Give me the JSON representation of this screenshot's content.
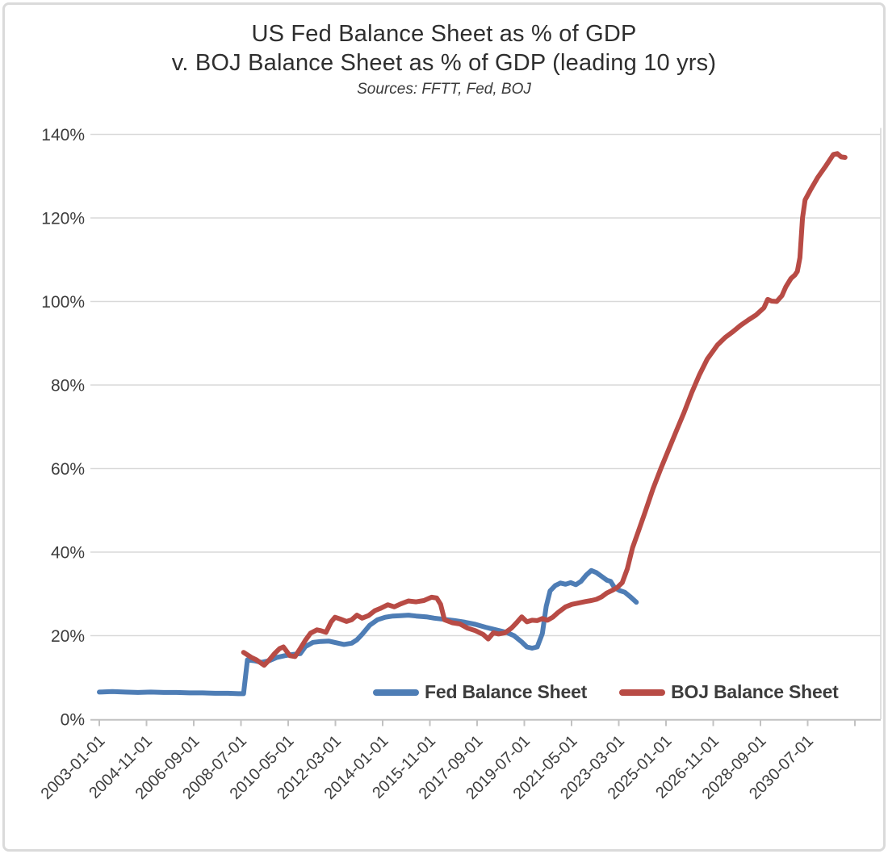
{
  "chart_data": {
    "type": "line",
    "title": "US Fed Balance Sheet as % of GDP",
    "subtitle": "v. BOJ Balance Sheet as % of GDP (leading 10 yrs)",
    "sources_note": "Sources: FFTT, Fed, BOJ",
    "x_axis": {
      "tick_labels": [
        "2003-01-01",
        "2004-11-01",
        "2006-09-01",
        "2008-07-01",
        "2010-05-01",
        "2012-03-01",
        "2014-01-01",
        "2015-11-01",
        "2017-09-01",
        "2019-07-01",
        "2021-05-01",
        "2023-03-01",
        "2025-01-01",
        "2026-11-01",
        "2028-09-01",
        "2030-07-01"
      ],
      "tick_interval_months": 22,
      "label_rotation_deg": -45,
      "range_decimal_years": [
        2003.0,
        2032.3
      ]
    },
    "y_axis": {
      "tick_labels": [
        "0%",
        "20%",
        "40%",
        "60%",
        "80%",
        "100%",
        "120%",
        "140%"
      ],
      "min": 0,
      "max": 140,
      "step": 20,
      "unit": "percent of GDP"
    },
    "grid": "horizontal",
    "legend_position": "bottom-inside",
    "axis_color": "#c2c2c2",
    "grid_color": "#d9d9d9",
    "text_color": "#3d3d3d",
    "series": [
      {
        "name": "Fed Balance Sheet",
        "color": "#4e7db5",
        "x_unit": "decimal_year",
        "points": [
          [
            2003.0,
            6.5
          ],
          [
            2003.5,
            6.6
          ],
          [
            2004.0,
            6.5
          ],
          [
            2004.5,
            6.4
          ],
          [
            2005.0,
            6.5
          ],
          [
            2005.5,
            6.4
          ],
          [
            2006.0,
            6.4
          ],
          [
            2006.5,
            6.3
          ],
          [
            2007.0,
            6.3
          ],
          [
            2007.5,
            6.2
          ],
          [
            2008.0,
            6.2
          ],
          [
            2008.4,
            6.1
          ],
          [
            2008.6,
            6.1
          ],
          [
            2008.75,
            14.2
          ],
          [
            2009.0,
            14.0
          ],
          [
            2009.3,
            13.6
          ],
          [
            2009.6,
            14.0
          ],
          [
            2009.9,
            14.8
          ],
          [
            2010.2,
            15.2
          ],
          [
            2010.5,
            15.5
          ],
          [
            2010.8,
            15.7
          ],
          [
            2011.0,
            17.4
          ],
          [
            2011.3,
            18.4
          ],
          [
            2011.6,
            18.6
          ],
          [
            2011.9,
            18.7
          ],
          [
            2012.2,
            18.3
          ],
          [
            2012.5,
            17.9
          ],
          [
            2012.8,
            18.2
          ],
          [
            2013.0,
            19.0
          ],
          [
            2013.2,
            20.3
          ],
          [
            2013.5,
            22.5
          ],
          [
            2013.8,
            23.8
          ],
          [
            2014.1,
            24.4
          ],
          [
            2014.4,
            24.7
          ],
          [
            2014.7,
            24.8
          ],
          [
            2015.0,
            24.9
          ],
          [
            2015.3,
            24.7
          ],
          [
            2015.7,
            24.5
          ],
          [
            2016.0,
            24.2
          ],
          [
            2016.4,
            23.9
          ],
          [
            2016.8,
            23.6
          ],
          [
            2017.2,
            23.2
          ],
          [
            2017.6,
            22.7
          ],
          [
            2018.0,
            22.0
          ],
          [
            2018.4,
            21.4
          ],
          [
            2018.8,
            20.8
          ],
          [
            2019.1,
            20.0
          ],
          [
            2019.4,
            18.5
          ],
          [
            2019.6,
            17.3
          ],
          [
            2019.8,
            17.0
          ],
          [
            2020.0,
            17.3
          ],
          [
            2020.2,
            20.5
          ],
          [
            2020.35,
            27.0
          ],
          [
            2020.5,
            30.7
          ],
          [
            2020.7,
            32.0
          ],
          [
            2020.9,
            32.6
          ],
          [
            2021.1,
            32.3
          ],
          [
            2021.3,
            32.7
          ],
          [
            2021.5,
            32.2
          ],
          [
            2021.7,
            33.0
          ],
          [
            2021.9,
            34.5
          ],
          [
            2022.1,
            35.6
          ],
          [
            2022.3,
            35.1
          ],
          [
            2022.5,
            34.2
          ],
          [
            2022.7,
            33.3
          ],
          [
            2022.85,
            33.0
          ],
          [
            2023.0,
            31.5
          ],
          [
            2023.2,
            30.8
          ],
          [
            2023.4,
            30.4
          ],
          [
            2023.6,
            29.4
          ],
          [
            2023.85,
            28.0
          ]
        ]
      },
      {
        "name": "BOJ Balance Sheet",
        "color": "#b84b45",
        "x_unit": "decimal_year",
        "points": [
          [
            2008.6,
            16.0
          ],
          [
            2008.9,
            14.8
          ],
          [
            2009.1,
            14.2
          ],
          [
            2009.4,
            12.9
          ],
          [
            2009.6,
            14.2
          ],
          [
            2009.8,
            15.7
          ],
          [
            2010.0,
            16.9
          ],
          [
            2010.15,
            17.3
          ],
          [
            2010.4,
            15.2
          ],
          [
            2010.6,
            15.0
          ],
          [
            2010.8,
            16.9
          ],
          [
            2011.0,
            18.9
          ],
          [
            2011.2,
            20.6
          ],
          [
            2011.45,
            21.4
          ],
          [
            2011.6,
            21.2
          ],
          [
            2011.8,
            20.8
          ],
          [
            2012.0,
            23.3
          ],
          [
            2012.15,
            24.4
          ],
          [
            2012.35,
            24.0
          ],
          [
            2012.6,
            23.4
          ],
          [
            2012.8,
            23.8
          ],
          [
            2013.0,
            24.9
          ],
          [
            2013.2,
            24.2
          ],
          [
            2013.45,
            24.8
          ],
          [
            2013.7,
            26.0
          ],
          [
            2013.9,
            26.5
          ],
          [
            2014.2,
            27.4
          ],
          [
            2014.45,
            26.9
          ],
          [
            2014.7,
            27.6
          ],
          [
            2015.0,
            28.3
          ],
          [
            2015.3,
            28.1
          ],
          [
            2015.6,
            28.4
          ],
          [
            2015.9,
            29.2
          ],
          [
            2016.1,
            29.0
          ],
          [
            2016.25,
            27.5
          ],
          [
            2016.4,
            23.8
          ],
          [
            2016.7,
            23.1
          ],
          [
            2017.0,
            22.8
          ],
          [
            2017.3,
            21.8
          ],
          [
            2017.6,
            21.2
          ],
          [
            2017.9,
            20.3
          ],
          [
            2018.1,
            19.2
          ],
          [
            2018.3,
            20.7
          ],
          [
            2018.5,
            20.4
          ],
          [
            2018.75,
            20.7
          ],
          [
            2019.0,
            21.8
          ],
          [
            2019.2,
            23.1
          ],
          [
            2019.4,
            24.5
          ],
          [
            2019.6,
            23.3
          ],
          [
            2019.8,
            23.7
          ],
          [
            2020.0,
            23.6
          ],
          [
            2020.2,
            24.1
          ],
          [
            2020.4,
            23.7
          ],
          [
            2020.6,
            24.4
          ],
          [
            2020.8,
            25.5
          ],
          [
            2021.1,
            26.9
          ],
          [
            2021.35,
            27.5
          ],
          [
            2021.6,
            27.8
          ],
          [
            2021.9,
            28.2
          ],
          [
            2022.1,
            28.4
          ],
          [
            2022.3,
            28.7
          ],
          [
            2022.5,
            29.3
          ],
          [
            2022.7,
            30.2
          ],
          [
            2022.9,
            30.8
          ],
          [
            2023.1,
            31.5
          ],
          [
            2023.3,
            32.7
          ],
          [
            2023.5,
            36.0
          ],
          [
            2023.7,
            41.0
          ],
          [
            2023.9,
            44.5
          ],
          [
            2024.2,
            49.8
          ],
          [
            2024.5,
            55.2
          ],
          [
            2024.8,
            60.0
          ],
          [
            2025.1,
            64.5
          ],
          [
            2025.4,
            69.0
          ],
          [
            2025.7,
            73.4
          ],
          [
            2026.0,
            78.2
          ],
          [
            2026.3,
            82.5
          ],
          [
            2026.6,
            86.2
          ],
          [
            2027.0,
            89.6
          ],
          [
            2027.3,
            91.4
          ],
          [
            2027.6,
            92.8
          ],
          [
            2027.9,
            94.3
          ],
          [
            2028.2,
            95.6
          ],
          [
            2028.5,
            96.8
          ],
          [
            2028.8,
            98.5
          ],
          [
            2028.95,
            100.5
          ],
          [
            2029.1,
            100.1
          ],
          [
            2029.3,
            100.0
          ],
          [
            2029.5,
            101.4
          ],
          [
            2029.65,
            103.5
          ],
          [
            2029.85,
            105.5
          ],
          [
            2030.0,
            106.3
          ],
          [
            2030.1,
            107.2
          ],
          [
            2030.2,
            110.5
          ],
          [
            2030.3,
            120.0
          ],
          [
            2030.4,
            124.3
          ],
          [
            2030.6,
            126.6
          ],
          [
            2030.9,
            129.8
          ],
          [
            2031.2,
            132.4
          ],
          [
            2031.5,
            135.2
          ],
          [
            2031.65,
            135.4
          ],
          [
            2031.8,
            134.6
          ],
          [
            2031.95,
            134.5
          ]
        ]
      }
    ]
  }
}
